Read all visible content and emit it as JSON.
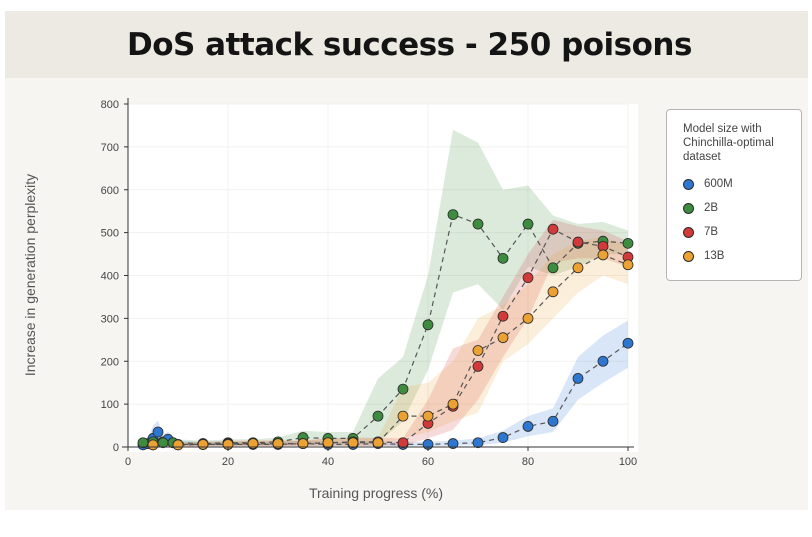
{
  "header": {
    "title": "DoS attack success - 250 poisons"
  },
  "chart_data": {
    "type": "line",
    "title": "DoS attack success - 250 poisons",
    "xlabel": "Training progress (%)",
    "ylabel": "Increase in generation perplexity",
    "xlim": [
      0,
      100
    ],
    "ylim": [
      0,
      800
    ],
    "xticks": [
      0,
      20,
      40,
      60,
      80,
      100
    ],
    "yticks": [
      0,
      100,
      200,
      300,
      400,
      500,
      600,
      700,
      800
    ],
    "grid": true,
    "legend_position": "right-outside",
    "legend_title": "Model size with Chinchilla-optimal dataset",
    "series": [
      {
        "name": "600M",
        "color": "#2e77d0",
        "x": [
          3,
          4,
          5,
          6,
          7,
          8,
          9,
          10,
          15,
          20,
          25,
          30,
          35,
          40,
          45,
          50,
          55,
          60,
          65,
          70,
          75,
          80,
          85,
          90,
          95,
          100
        ],
        "y": [
          5,
          8,
          20,
          35,
          12,
          18,
          10,
          6,
          6,
          6,
          6,
          6,
          8,
          6,
          6,
          8,
          6,
          6,
          8,
          10,
          22,
          48,
          60,
          160,
          200,
          242
        ],
        "lower": [
          0,
          0,
          5,
          10,
          3,
          5,
          3,
          2,
          2,
          2,
          2,
          2,
          3,
          2,
          2,
          3,
          2,
          2,
          3,
          4,
          10,
          25,
          35,
          110,
          150,
          185
        ],
        "upper": [
          15,
          20,
          50,
          62,
          30,
          35,
          25,
          15,
          12,
          12,
          12,
          12,
          15,
          12,
          12,
          15,
          12,
          12,
          15,
          20,
          38,
          72,
          90,
          210,
          260,
          295
        ]
      },
      {
        "name": "2B",
        "color": "#3d8c3f",
        "x": [
          3,
          5,
          7,
          9,
          15,
          20,
          25,
          30,
          35,
          40,
          45,
          50,
          55,
          60,
          65,
          70,
          75,
          80,
          85,
          90,
          95,
          100
        ],
        "y": [
          10,
          12,
          10,
          10,
          8,
          10,
          10,
          12,
          22,
          20,
          20,
          72,
          135,
          285,
          542,
          520,
          440,
          520,
          418,
          475,
          480,
          475
        ],
        "lower": [
          3,
          4,
          3,
          3,
          3,
          4,
          4,
          5,
          8,
          8,
          8,
          10,
          60,
          180,
          360,
          380,
          320,
          420,
          400,
          420,
          450,
          450
        ],
        "upper": [
          18,
          22,
          18,
          18,
          15,
          18,
          18,
          22,
          38,
          35,
          35,
          160,
          210,
          400,
          740,
          710,
          600,
          610,
          540,
          520,
          525,
          505
        ]
      },
      {
        "name": "7B",
        "color": "#d23a3a",
        "x": [
          5,
          10,
          15,
          20,
          25,
          30,
          35,
          40,
          45,
          50,
          55,
          60,
          65,
          70,
          75,
          80,
          85,
          90,
          95,
          100
        ],
        "y": [
          5,
          5,
          6,
          8,
          8,
          8,
          8,
          10,
          12,
          12,
          10,
          55,
          95,
          188,
          305,
          395,
          508,
          478,
          468,
          443
        ],
        "lower": [
          1,
          1,
          2,
          2,
          2,
          2,
          2,
          3,
          3,
          3,
          3,
          20,
          40,
          110,
          210,
          300,
          430,
          440,
          440,
          420
        ],
        "upper": [
          10,
          10,
          12,
          15,
          15,
          15,
          15,
          20,
          22,
          22,
          20,
          110,
          230,
          250,
          350,
          450,
          530,
          515,
          505,
          480
        ]
      },
      {
        "name": "13B",
        "color": "#eba232",
        "x": [
          5,
          10,
          15,
          20,
          25,
          30,
          35,
          40,
          45,
          50,
          55,
          60,
          65,
          70,
          75,
          80,
          85,
          90,
          95,
          100
        ],
        "y": [
          5,
          5,
          6,
          6,
          8,
          8,
          8,
          10,
          10,
          10,
          72,
          72,
          100,
          225,
          255,
          300,
          362,
          418,
          448,
          425
        ],
        "lower": [
          1,
          1,
          2,
          2,
          2,
          2,
          2,
          3,
          3,
          3,
          20,
          35,
          60,
          80,
          200,
          240,
          300,
          360,
          400,
          380
        ],
        "upper": [
          10,
          10,
          12,
          12,
          15,
          15,
          15,
          20,
          20,
          20,
          140,
          150,
          200,
          300,
          330,
          380,
          450,
          480,
          490,
          470
        ]
      }
    ]
  }
}
